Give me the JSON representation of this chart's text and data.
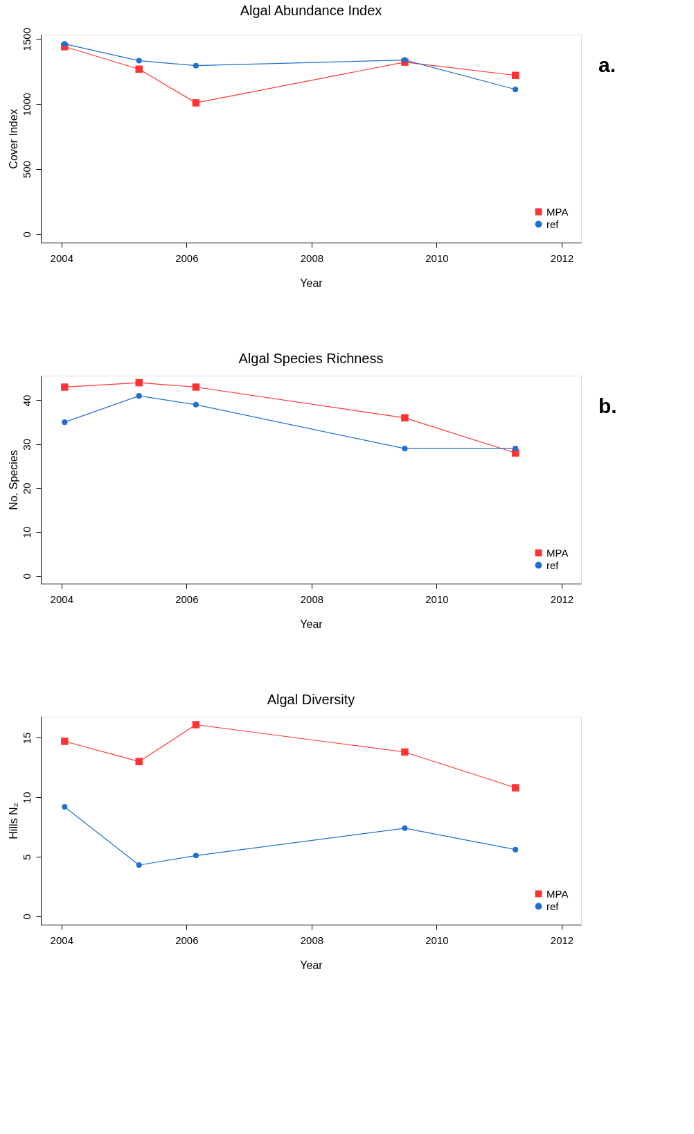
{
  "chart_data": [
    {
      "type": "line",
      "title": "Algal Abundance Index",
      "xlabel": "Year",
      "ylabel": "Cover Index",
      "xlim": [
        2003.67,
        2012.31
      ],
      "xticks": [
        2004,
        2006,
        2008,
        2010,
        2012
      ],
      "ylim": [
        -65,
        1533
      ],
      "yticks": [
        0,
        500,
        1000,
        1500
      ],
      "legend": "bottom right",
      "grid": false,
      "annotations": [
        "a."
      ],
      "x": [
        2004.05,
        2005.24,
        2006.15,
        2009.49,
        2011.26
      ],
      "series": [
        {
          "name": "MPA",
          "color": "#ff3333",
          "marker": "square",
          "values": [
            1441,
            1268,
            1009,
            1322,
            1220
          ]
        },
        {
          "name": "ref",
          "color": "#1f6fcf",
          "marker": "circle",
          "values": [
            1462,
            1333,
            1295,
            1338,
            1112
          ]
        }
      ]
    },
    {
      "type": "line",
      "title": "Algal Species Richness",
      "xlabel": "Year",
      "ylabel": "No. Species",
      "xlim": [
        2003.67,
        2012.31
      ],
      "xticks": [
        2004,
        2006,
        2008,
        2010,
        2012
      ],
      "ylim": [
        -1.76,
        45.6
      ],
      "yticks": [
        0,
        10,
        20,
        30,
        40
      ],
      "legend": "bottom right",
      "grid": false,
      "annotations": [
        "b."
      ],
      "x": [
        2004.05,
        2005.24,
        2006.15,
        2009.49,
        2011.26
      ],
      "series": [
        {
          "name": "MPA",
          "color": "#ff3333",
          "marker": "square",
          "values": [
            43,
            44,
            43,
            36,
            28
          ]
        },
        {
          "name": "ref",
          "color": "#1f6fcf",
          "marker": "circle",
          "values": [
            35,
            41,
            39,
            29,
            29
          ]
        }
      ]
    },
    {
      "type": "line",
      "title": "Algal Diversity",
      "xlabel": "Year",
      "ylabel": "Hills N₂",
      "xlim": [
        2003.67,
        2012.31
      ],
      "xticks": [
        2004,
        2006,
        2008,
        2010,
        2012
      ],
      "ylim": [
        -0.71,
        16.77
      ],
      "yticks": [
        0,
        5,
        10,
        15
      ],
      "legend": "bottom right",
      "grid": false,
      "x": [
        2004.05,
        2005.24,
        2006.15,
        2009.49,
        2011.26
      ],
      "series": [
        {
          "name": "MPA",
          "color": "#ff3333",
          "marker": "square",
          "values": [
            14.7,
            13.0,
            16.1,
            13.8,
            10.8
          ]
        },
        {
          "name": "ref",
          "color": "#1f6fcf",
          "marker": "circle",
          "values": [
            9.2,
            4.3,
            5.1,
            7.4,
            5.6
          ]
        }
      ]
    }
  ]
}
